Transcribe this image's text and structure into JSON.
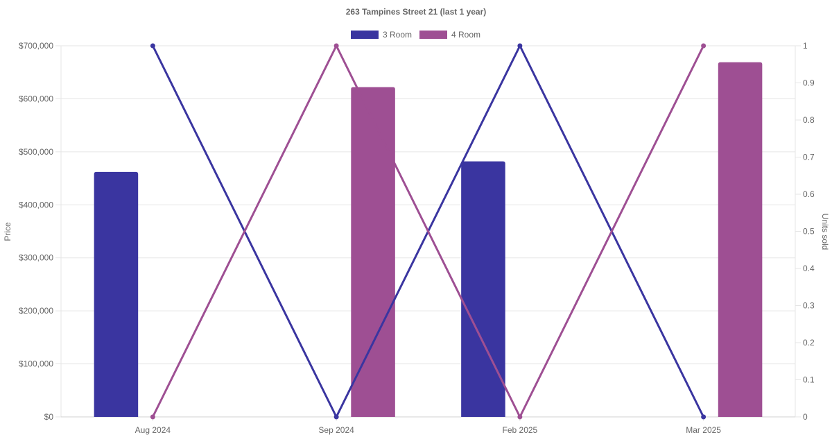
{
  "chart_data": {
    "type": "bar",
    "title": "263 Tampines Street 21 (last 1 year)",
    "categories": [
      "Aug 2024",
      "Sep 2024",
      "Feb 2025",
      "Mar 2025"
    ],
    "y_left": {
      "label": "Price",
      "range": [
        0,
        700000
      ],
      "ticks": [
        "$0",
        "$100,000",
        "$200,000",
        "$300,000",
        "$400,000",
        "$500,000",
        "$600,000",
        "$700,000"
      ]
    },
    "y_right": {
      "label": "Units sold",
      "range": [
        0,
        1
      ],
      "ticks": [
        "0",
        "0.1",
        "0.2",
        "0.3",
        "0.4",
        "0.5",
        "0.6",
        "0.7",
        "0.8",
        "0.9",
        "1"
      ]
    },
    "grid": true,
    "legend_position": "top",
    "series": [
      {
        "name": "3 Room",
        "color": "#3a35a0",
        "price": [
          462000,
          null,
          482000,
          null
        ],
        "units_sold": [
          1,
          0,
          1,
          0
        ]
      },
      {
        "name": "4 Room",
        "color": "#9e4f93",
        "price": [
          null,
          622000,
          null,
          669000
        ],
        "units_sold": [
          0,
          1,
          0,
          1
        ]
      }
    ]
  }
}
